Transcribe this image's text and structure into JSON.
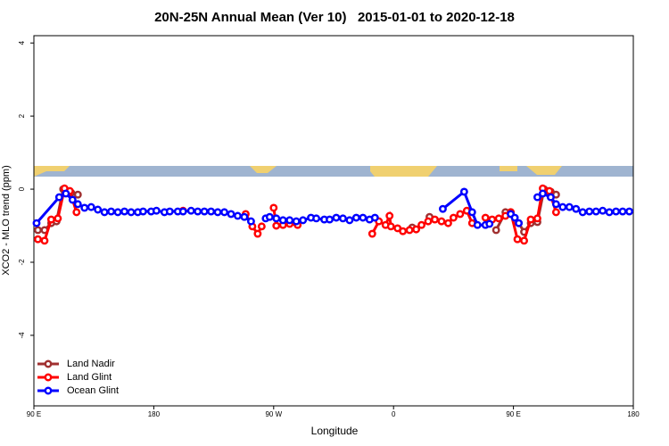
{
  "chart_data": {
    "type": "line",
    "title": "20N-25N Annual Mean (Ver 10)   2015-01-01 to 2020-12-18",
    "x_label": "Longitude",
    "y_label": "XCO2 - MLO trend (ppm)",
    "xlim": [
      90,
      540
    ],
    "xticks": [
      {
        "value": 90,
        "label": "90 E"
      },
      180,
      {
        "value": 270,
        "label": "90 W"
      },
      {
        "value": 360,
        "label": "0"
      },
      {
        "value": 450,
        "label": "90 E"
      },
      {
        "value": 540,
        "label": "180"
      }
    ],
    "ylim": [
      -5.93,
      4.2
    ],
    "yticks": [
      -4,
      -2,
      0,
      2,
      4
    ],
    "legend": "bottom-left",
    "series": [
      {
        "name": "Land Nadir",
        "color": "#a03030",
        "x": [
          93,
          98,
          103,
          107,
          112,
          118,
          123,
          null,
          374,
          null,
          387,
          null,
          437,
          444,
          448,
          454,
          458,
          463,
          468,
          473,
          478,
          482
        ],
        "values": [
          -1.12,
          -1.12,
          -0.93,
          -0.88,
          0.0,
          -0.1,
          -0.15,
          null,
          -1.05,
          null,
          -0.76,
          null,
          -1.12,
          -0.63,
          -0.63,
          -0.93,
          -1.17,
          -0.93,
          -0.9,
          0.0,
          -0.07,
          -0.15
        ]
      },
      {
        "name": "Land Glint",
        "color": "#ff0000",
        "x": [
          93,
          98,
          103,
          108,
          113,
          117,
          122,
          null,
          202,
          null,
          249,
          254,
          258,
          261,
          null,
          270,
          272,
          277,
          282,
          288,
          null,
          344,
          349,
          354,
          357,
          358,
          363,
          367,
          372,
          377,
          381,
          386,
          391,
          396,
          401,
          405,
          410,
          415,
          419,
          null,
          429,
          434,
          439,
          444,
          448,
          453,
          458,
          463,
          468,
          472,
          477,
          482
        ],
        "values": [
          -1.37,
          -1.41,
          -0.83,
          -0.8,
          0.02,
          -0.05,
          -0.63,
          null,
          -0.59,
          null,
          -0.68,
          -1.02,
          -1.22,
          -1.02,
          null,
          -0.51,
          -1.0,
          -0.98,
          -0.95,
          -0.98,
          null,
          -1.22,
          -0.88,
          -0.98,
          -0.73,
          -1.02,
          -1.07,
          -1.15,
          -1.12,
          -1.1,
          -0.98,
          -0.88,
          -0.83,
          -0.88,
          -0.93,
          -0.78,
          -0.68,
          -0.59,
          -0.93,
          null,
          -0.78,
          -0.83,
          -0.8,
          -0.73,
          -0.63,
          -1.37,
          -1.41,
          -0.83,
          -0.8,
          0.02,
          -0.05,
          -0.63
        ]
      },
      {
        "name": "Ocean Glint",
        "color": "#0000ff",
        "x": [
          92,
          109,
          114,
          119,
          123,
          128,
          133,
          138,
          143,
          148,
          153,
          158,
          163,
          168,
          172,
          178,
          182,
          188,
          192,
          198,
          202,
          208,
          213,
          218,
          223,
          228,
          233,
          238,
          243,
          248,
          253,
          null,
          264,
          267,
          272,
          277,
          282,
          287,
          292,
          298,
          302,
          308,
          312,
          317,
          322,
          327,
          332,
          337,
          342,
          346,
          null,
          397,
          413,
          419,
          423,
          429,
          432,
          null,
          448,
          451,
          454,
          null,
          468,
          472,
          478,
          482,
          487,
          492,
          497,
          502,
          507,
          512,
          517,
          522,
          527,
          532,
          537
        ],
        "values": [
          -0.93,
          -0.22,
          -0.12,
          -0.29,
          -0.41,
          -0.51,
          -0.49,
          -0.56,
          -0.63,
          -0.61,
          -0.63,
          -0.61,
          -0.63,
          -0.63,
          -0.61,
          -0.61,
          -0.59,
          -0.63,
          -0.61,
          -0.61,
          -0.61,
          -0.59,
          -0.61,
          -0.61,
          -0.61,
          -0.63,
          -0.63,
          -0.68,
          -0.73,
          -0.76,
          -0.88,
          null,
          -0.8,
          -0.76,
          -0.8,
          -0.85,
          -0.85,
          -0.88,
          -0.85,
          -0.78,
          -0.8,
          -0.83,
          -0.83,
          -0.78,
          -0.8,
          -0.85,
          -0.78,
          -0.78,
          -0.83,
          -0.78,
          null,
          -0.54,
          -0.07,
          -0.63,
          -0.98,
          -0.98,
          -0.95,
          null,
          -0.68,
          -0.78,
          -0.93,
          null,
          -0.22,
          -0.12,
          -0.22,
          -0.41,
          -0.49,
          -0.49,
          -0.54,
          -0.63,
          -0.61,
          -0.61,
          -0.59,
          -0.63,
          -0.61,
          -0.61,
          -0.61
        ]
      }
    ]
  }
}
